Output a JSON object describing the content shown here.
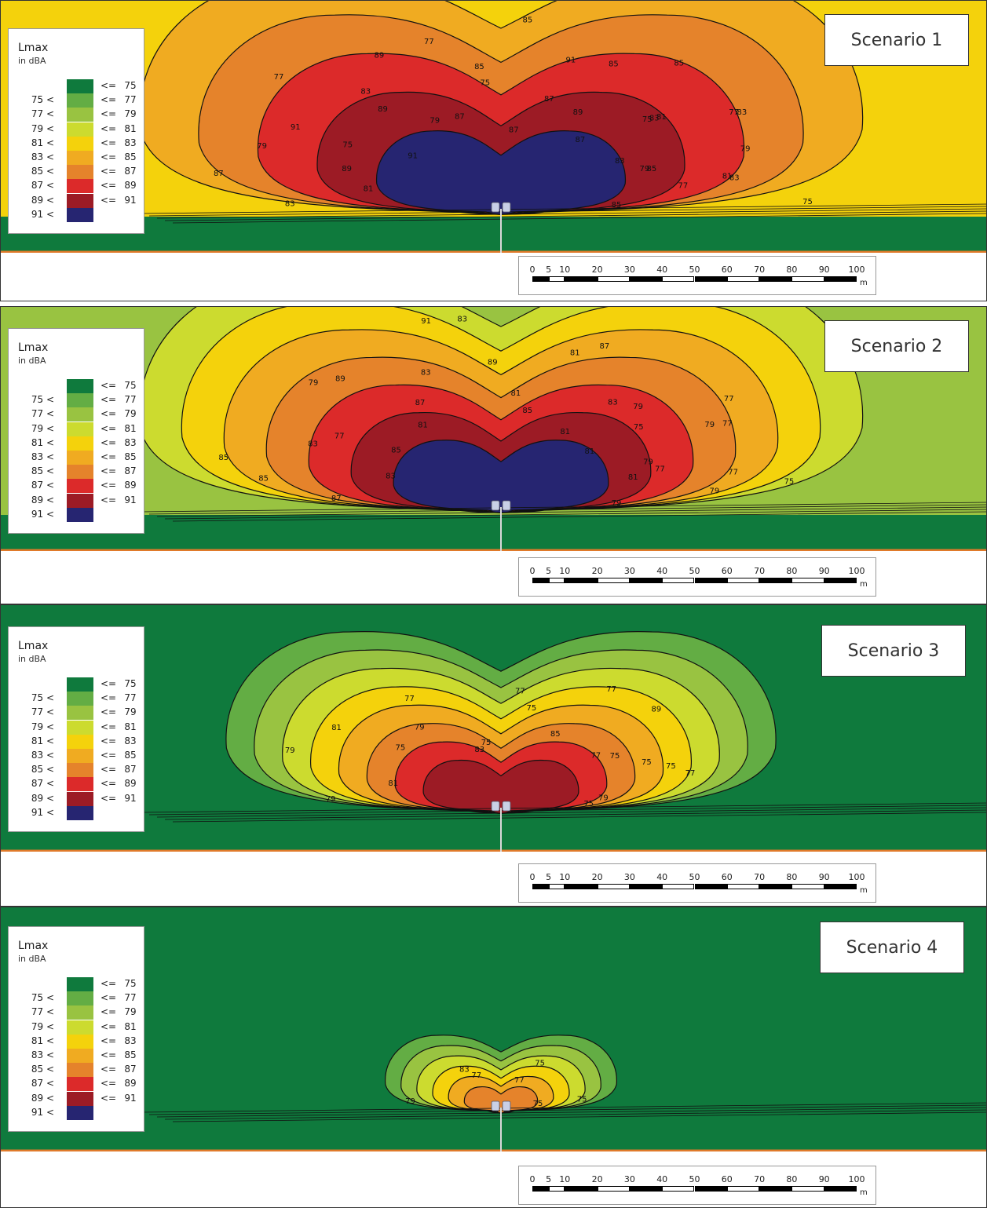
{
  "legend": {
    "title": "Lmax",
    "unit": "in dBA",
    "rows": [
      {
        "lo": "",
        "le": "<=",
        "hi": "75",
        "color": "#0f7a3d"
      },
      {
        "lo": "75 <",
        "le": "<=",
        "hi": "77",
        "color": "#63ad44"
      },
      {
        "lo": "77 <",
        "le": "<=",
        "hi": "79",
        "color": "#99c341"
      },
      {
        "lo": "79 <",
        "le": "<=",
        "hi": "81",
        "color": "#ccdb2f"
      },
      {
        "lo": "81 <",
        "le": "<=",
        "hi": "83",
        "color": "#f4d20c"
      },
      {
        "lo": "83 <",
        "le": "<=",
        "hi": "85",
        "color": "#f0ab21"
      },
      {
        "lo": "85 <",
        "le": "<=",
        "hi": "87",
        "color": "#e5832b"
      },
      {
        "lo": "87 <",
        "le": "<=",
        "hi": "89",
        "color": "#dc2a2a"
      },
      {
        "lo": "89 <",
        "le": "<=",
        "hi": "91",
        "color": "#9c1b25"
      },
      {
        "lo": "91 <",
        "le": "",
        "hi": "",
        "color": "#262571"
      }
    ]
  },
  "scalebar": {
    "ticks": [
      "0",
      "5",
      "10",
      "20",
      "30",
      "40",
      "50",
      "60",
      "70",
      "80",
      "90",
      "100"
    ],
    "tick_values": [
      0,
      5,
      10,
      20,
      30,
      40,
      50,
      60,
      70,
      80,
      90,
      100
    ],
    "unit": "m"
  },
  "colors": {
    "road_line": "#e07a2a",
    "contour_line": "#111111",
    "source_marker": "#c9d0e6"
  },
  "panels": [
    {
      "scenario_label": "Scenario 1",
      "background_level_index": 4,
      "contour_labels": [
        "85",
        "83",
        "85",
        "83",
        "83",
        "87",
        "85",
        "87",
        "85",
        "85",
        "87",
        "89",
        "89",
        "91",
        "91",
        "89",
        "87",
        "83",
        "81",
        "79",
        "75",
        "77",
        "83",
        "79",
        "77",
        "75",
        "87",
        "91",
        "89",
        "85",
        "81",
        "83",
        "79",
        "77",
        "75",
        "81",
        "79",
        "77",
        "75"
      ],
      "max_level_index": 9
    },
    {
      "scenario_label": "Scenario 2",
      "background_level_index": 2,
      "contour_labels": [
        "79",
        "77",
        "79",
        "77",
        "79",
        "81",
        "81",
        "81",
        "83",
        "83",
        "81",
        "79",
        "77",
        "83",
        "85",
        "87",
        "85",
        "83",
        "85",
        "89",
        "87",
        "91",
        "89",
        "85",
        "87",
        "83",
        "81",
        "79",
        "77",
        "75",
        "79",
        "81",
        "77",
        "75"
      ],
      "max_level_index": 9
    },
    {
      "scenario_label": "Scenario 3",
      "background_level_index": 0,
      "contour_labels": [
        "75",
        "75",
        "77",
        "77",
        "75",
        "75",
        "77",
        "75",
        "79",
        "79",
        "81",
        "81",
        "79",
        "83",
        "77",
        "85",
        "89",
        "75",
        "79",
        "77",
        "75"
      ],
      "max_level_index": 8
    },
    {
      "scenario_label": "Scenario 4",
      "background_level_index": 0,
      "contour_labels": [
        "75",
        "75",
        "77",
        "79",
        "83",
        "77",
        "75"
      ],
      "max_level_index": 6
    }
  ]
}
